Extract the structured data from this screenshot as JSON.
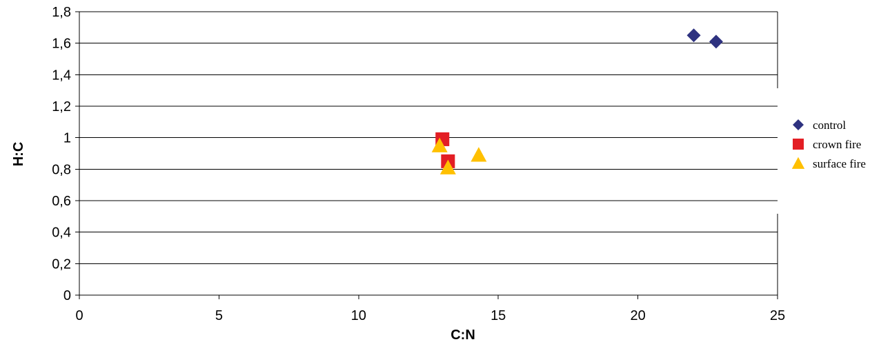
{
  "chart_data": {
    "type": "scatter",
    "title": "",
    "xlabel": "C:N",
    "ylabel": "H:C",
    "xlim": [
      0,
      25
    ],
    "ylim": [
      0,
      1.8
    ],
    "x_ticks": [
      {
        "value": 0,
        "label": "0"
      },
      {
        "value": 5,
        "label": "5"
      },
      {
        "value": 10,
        "label": "10"
      },
      {
        "value": 15,
        "label": "15"
      },
      {
        "value": 20,
        "label": "20"
      },
      {
        "value": 25,
        "label": "25"
      }
    ],
    "y_ticks": [
      {
        "value": 0,
        "label": "0"
      },
      {
        "value": 0.2,
        "label": "0,2"
      },
      {
        "value": 0.4,
        "label": "0,4"
      },
      {
        "value": 0.6,
        "label": "0,6"
      },
      {
        "value": 0.8,
        "label": "0,8"
      },
      {
        "value": 1,
        "label": "1"
      },
      {
        "value": 1.2,
        "label": "1,2"
      },
      {
        "value": 1.4,
        "label": "1,4"
      },
      {
        "value": 1.6,
        "label": "1,6"
      },
      {
        "value": 1.8,
        "label": "1,8"
      }
    ],
    "grid": "horizontal",
    "legend_position": "right",
    "series": [
      {
        "name": "control",
        "marker": "diamond",
        "color": "#2e3280",
        "points": [
          {
            "x": 22.0,
            "y": 1.65
          },
          {
            "x": 22.8,
            "y": 1.61
          }
        ]
      },
      {
        "name": "crown fire",
        "marker": "square",
        "color": "#e31e24",
        "points": [
          {
            "x": 13.0,
            "y": 0.99
          },
          {
            "x": 13.2,
            "y": 0.85
          }
        ]
      },
      {
        "name": "surface fire",
        "marker": "triangle",
        "color": "#ffc000",
        "points": [
          {
            "x": 12.9,
            "y": 0.95
          },
          {
            "x": 13.2,
            "y": 0.81
          },
          {
            "x": 14.3,
            "y": 0.89
          }
        ]
      }
    ]
  }
}
